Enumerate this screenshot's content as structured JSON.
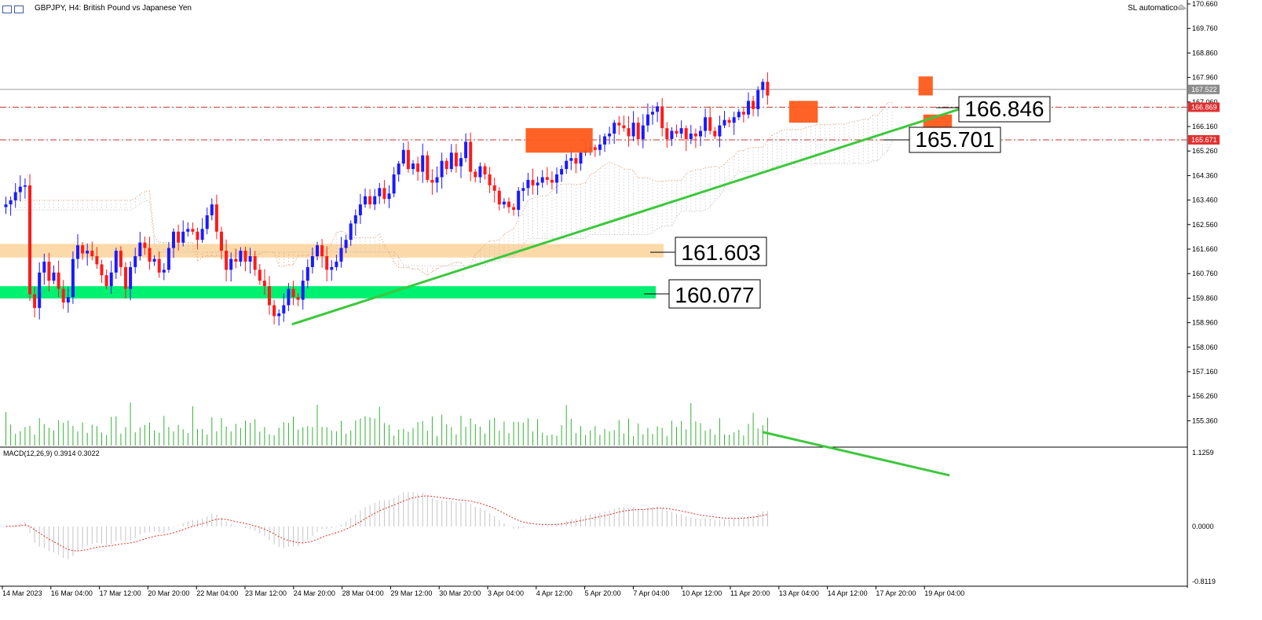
{
  "window": {
    "title": "GBPJPY, H4:  British Pound vs Japanese Yen",
    "right_label": "SL automatico"
  },
  "chart_data": [
    {
      "type": "candlestick",
      "symbol": "GBPJPY",
      "timeframe": "H4",
      "title": "GBPJPY, H4:  British Pound vs Japanese Yen",
      "y_axis_ticks": [
        "170.660",
        "169.760",
        "168.860",
        "167.960",
        "167.060",
        "166.160",
        "165.260",
        "164.360",
        "163.460",
        "162.560",
        "161.660",
        "160.760",
        "159.860",
        "158.960",
        "158.060",
        "157.160",
        "156.260",
        "155.360"
      ],
      "ylim": [
        154.9,
        170.66
      ],
      "x_axis_ticks": [
        "14 Mar 2023",
        "16 Mar 04:00",
        "17 Mar 12:00",
        "20 Mar 20:00",
        "22 Mar 04:00",
        "23 Mar 12:00",
        "24 Mar 20:00",
        "28 Mar 04:00",
        "29 Mar 12:00",
        "30 Mar 20:00",
        "3 Apr 04:00",
        "4 Apr 12:00",
        "5 Apr 20:00",
        "7 Apr 04:00",
        "10 Apr 12:00",
        "11 Apr 20:00",
        "13 Apr 04:00",
        "14 Apr 12:00",
        "17 Apr 20:00",
        "19 Apr 04:00"
      ],
      "price_markers": [
        {
          "value": "167.522",
          "color": "#8c8c8c"
        },
        {
          "value": "166.869",
          "color": "#e03030"
        },
        {
          "value": "165.671",
          "color": "#e03030"
        }
      ],
      "horizontal_lines": [
        {
          "value": 167.522,
          "style": "solid",
          "color": "#9a9a9a"
        },
        {
          "value": 166.869,
          "style": "dashdot",
          "color": "#c0392b"
        },
        {
          "value": 165.671,
          "style": "dashdot",
          "color": "#c0392b"
        }
      ],
      "callouts": [
        "166.846",
        "165.701",
        "161.603",
        "160.077"
      ],
      "zones": [
        {
          "name": "resistance",
          "label": "161.603",
          "from": 161.35,
          "to": 161.85,
          "color": "#fcd9a8"
        },
        {
          "name": "support",
          "label": "160.077",
          "from": 159.85,
          "to": 160.3,
          "color": "#00f070"
        }
      ],
      "trendline_up": {
        "from": [
          24,
          158.9
        ],
        "to": [
          190,
          166.8
        ],
        "color": "#3cc83c"
      },
      "highlight_boxes": [
        {
          "bar": [
            109,
            122
          ],
          "price": [
            165.2,
            166.1
          ],
          "color": "#ff5a1a"
        },
        {
          "bar": [
            164,
            169
          ],
          "price": [
            166.3,
            167.1
          ],
          "color": "#ff5a1a"
        },
        {
          "bar": [
            191,
            193
          ],
          "price": [
            167.3,
            168.0
          ],
          "color": "#ff5a1a"
        },
        {
          "bar": [
            192,
            197
          ],
          "price": [
            166.0,
            166.6
          ],
          "color": "#ff5a1a"
        }
      ],
      "closes": [
        163.3,
        163.45,
        163.75,
        163.95,
        164.0,
        160.0,
        159.5,
        160.8,
        161.2,
        160.5,
        160.8,
        160.2,
        159.7,
        159.9,
        161.3,
        161.8,
        161.5,
        161.6,
        161.4,
        161.1,
        160.7,
        160.3,
        160.8,
        161.6,
        161.0,
        160.2,
        161.0,
        161.4,
        161.9,
        161.7,
        161.2,
        161.3,
        160.8,
        160.9,
        161.7,
        162.3,
        161.9,
        162.3,
        162.4,
        162.3,
        162.0,
        162.4,
        162.9,
        163.3,
        162.3,
        161.6,
        160.9,
        161.3,
        161.2,
        161.6,
        161.2,
        161.4,
        160.9,
        160.5,
        160.3,
        159.6,
        159.2,
        159.3,
        159.6,
        160.2,
        159.9,
        159.8,
        160.5,
        161.0,
        161.4,
        161.8,
        161.4,
        160.9,
        161.0,
        161.2,
        161.7,
        162.0,
        162.6,
        162.9,
        163.3,
        163.6,
        163.3,
        163.6,
        163.9,
        163.5,
        163.7,
        164.4,
        164.8,
        165.3,
        164.6,
        164.8,
        164.5,
        165.1,
        164.2,
        164.1,
        164.3,
        164.9,
        164.6,
        165.2,
        164.7,
        165.0,
        165.6,
        164.5,
        164.3,
        164.7,
        164.4,
        164.0,
        163.8,
        163.3,
        163.4,
        163.2,
        163.1,
        163.8,
        163.9,
        164.2,
        164.0,
        164.1,
        164.3,
        164.2,
        164.1,
        164.4,
        164.6,
        164.9,
        165.0,
        164.8,
        165.2,
        165.3,
        165.4,
        165.3,
        165.5,
        165.8,
        165.9,
        166.3,
        166.2,
        166.1,
        165.8,
        166.3,
        165.7,
        166.2,
        166.6,
        166.7,
        166.9,
        166.1,
        165.7,
        166.0,
        165.9,
        166.1,
        165.7,
        165.9,
        165.8,
        166.0,
        166.5,
        166.0,
        165.8,
        166.2,
        166.4,
        166.3,
        166.5,
        166.7,
        166.6,
        167.1,
        166.8,
        167.5,
        167.8,
        167.3
      ],
      "volume_bars": 200,
      "indicator": {
        "type": "macd",
        "label": "MACD(12,26,9) 0.3914 0.3022",
        "params": [
          12,
          26,
          9
        ],
        "main": 0.3914,
        "signal": 0.3022,
        "y_axis_ticks": [
          "1.1259",
          "0.0000",
          "-0.8119"
        ],
        "ylim": [
          -0.8119,
          1.1259
        ],
        "divergence_line": {
          "from": [
            158,
            0.72
          ],
          "to": [
            197,
            0.42
          ],
          "color": "#3cc83c"
        }
      }
    }
  ]
}
